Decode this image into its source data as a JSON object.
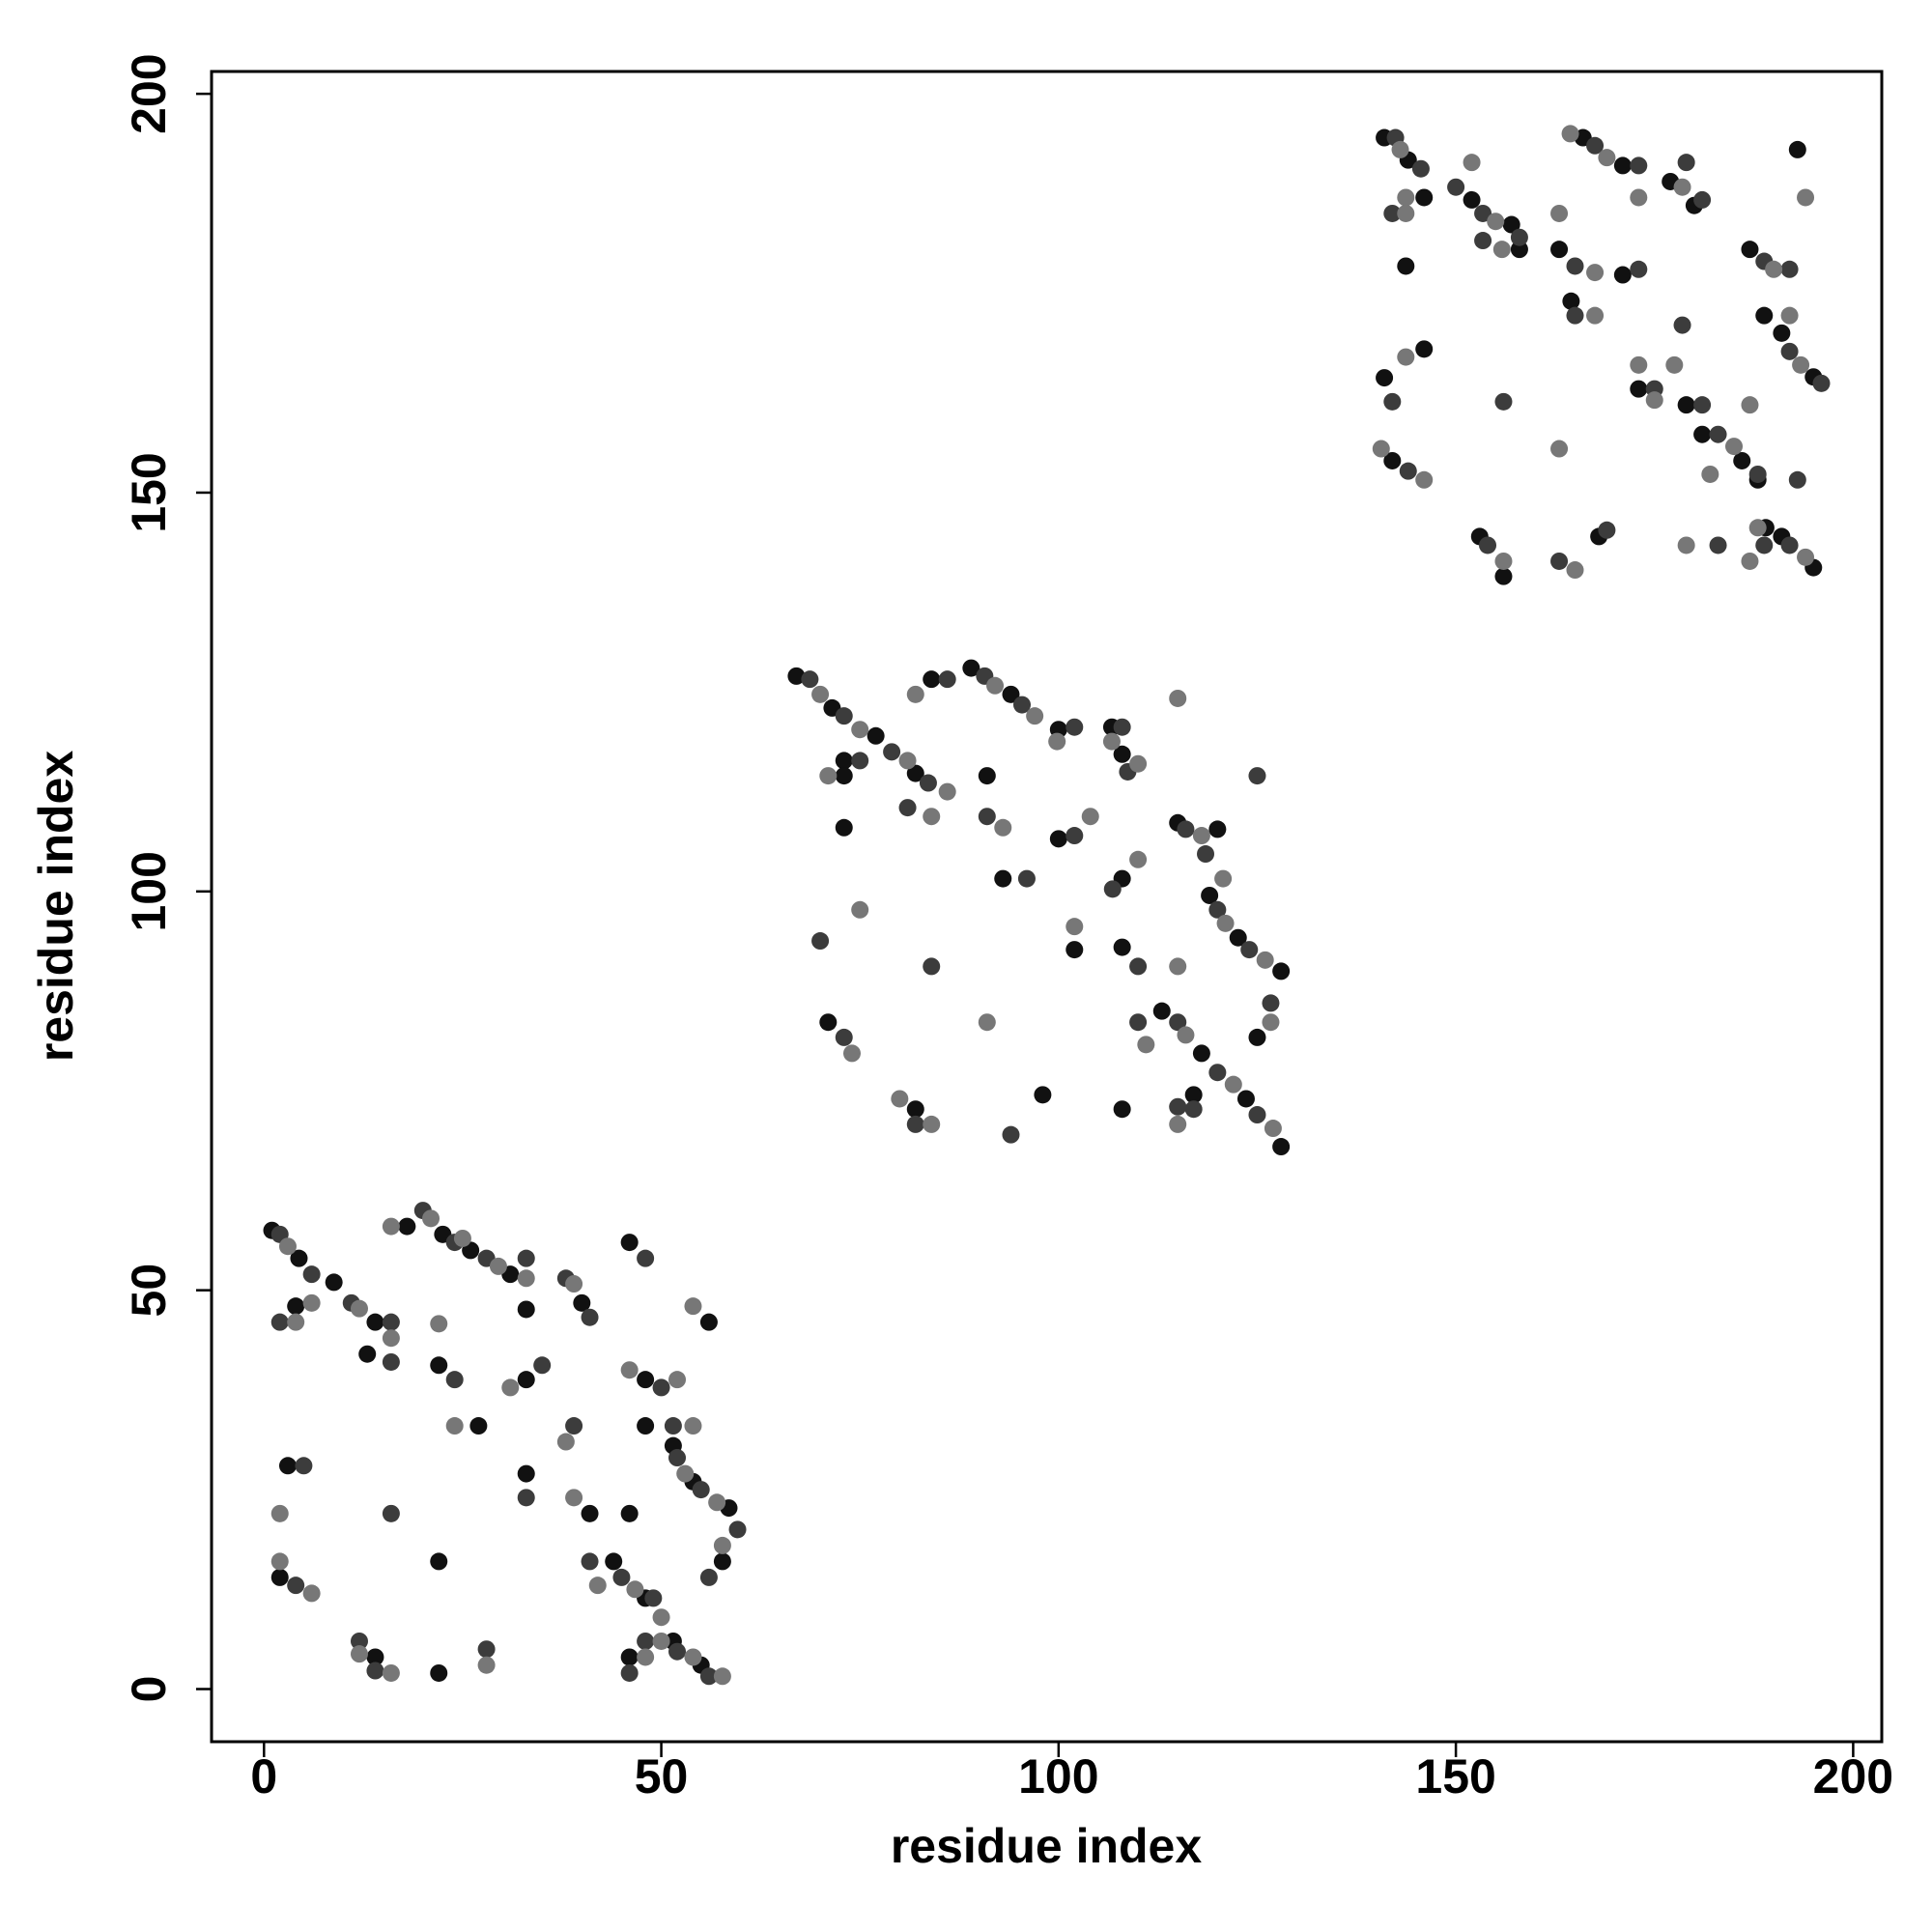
{
  "chart_data": {
    "type": "scatter",
    "xlabel": "residue index",
    "ylabel": "residue index",
    "xlim": [
      -6.6,
      203.6
    ],
    "ylim": [
      -6.6,
      202.8
    ],
    "xticks": [
      0,
      50,
      100,
      150,
      200
    ],
    "yticks": [
      0,
      50,
      100,
      150,
      200
    ],
    "grid": false,
    "series": [
      {
        "color": "#111111",
        "x": [
          1,
          4.4,
          4,
          8.8,
          14,
          13,
          18,
          22.5,
          26,
          31,
          33,
          40,
          22,
          33,
          27,
          33,
          41,
          3,
          2,
          22,
          14,
          22,
          46,
          48,
          48,
          51.5,
          54,
          58.5,
          57.7,
          56,
          44,
          48,
          46,
          51.5,
          55,
          46,
          67,
          71.5,
          77,
          82,
          73,
          73,
          73,
          84,
          89,
          94,
          100,
          91,
          100,
          93,
          102,
          98,
          82,
          71,
          106.7,
          108,
          108,
          108,
          115,
          120,
          119,
          122.6,
          128,
          125,
          113,
          118,
          123.6,
          128,
          108,
          117,
          141,
          144,
          146,
          143.7,
          152,
          157,
          158,
          163,
          164.5,
          171,
          166,
          171,
          177,
          180,
          193,
          179,
          173,
          187,
          188.8,
          191,
          195,
          181,
          186,
          188,
          189,
          191,
          195,
          142,
          141,
          146,
          153,
          156,
          168
        ],
        "y": [
          57.5,
          54,
          48,
          51,
          46,
          42,
          58,
          57,
          55,
          52,
          47.6,
          48.4,
          40.6,
          38.8,
          33,
          27,
          22,
          28,
          14,
          16,
          4,
          2,
          56,
          38.8,
          33,
          30.5,
          26,
          22.7,
          16,
          46,
          16,
          11.4,
          22,
          6,
          3,
          4,
          127,
          123,
          119.5,
          114.8,
          116.4,
          114.5,
          108,
          126.6,
          128,
          124.7,
          120.3,
          114.5,
          106.6,
          101.6,
          92.7,
          74.5,
          72.7,
          83.6,
          120.6,
          117.2,
          101.6,
          93,
          108.6,
          107.8,
          99.5,
          94.2,
          90,
          81.7,
          85,
          79.7,
          74,
          68,
          72.7,
          74.5,
          194.5,
          191.7,
          187,
          178.4,
          186.7,
          183.6,
          180.5,
          180.5,
          174,
          177.3,
          194.5,
          191,
          189,
          186,
          193,
          161,
          163,
          180.5,
          172.2,
          170,
          164.5,
          157.3,
          154,
          151.6,
          145.6,
          144.5,
          140.6,
          154,
          164.4,
          168,
          144.5,
          139.5,
          144.5
        ]
      },
      {
        "color": "#3c3c3c",
        "x": [
          2,
          6,
          2,
          11,
          16,
          16,
          20,
          24,
          28,
          33,
          38,
          41,
          24,
          35,
          39,
          33,
          16,
          5,
          4,
          12,
          14,
          28,
          48,
          50,
          51.5,
          52,
          55,
          59.6,
          56,
          41,
          45,
          49,
          48,
          52,
          56,
          46,
          68.7,
          73,
          79,
          83.6,
          75,
          81,
          70,
          86,
          90.7,
          95.4,
          102,
          91,
          102,
          96,
          84,
          94,
          82,
          73,
          108,
          108.7,
          106.8,
          110,
          116,
          118.5,
          120,
          124,
          126.7,
          125,
          115,
          120,
          125,
          110,
          115,
          117,
          142.4,
          145.6,
          142,
          150,
          153.4,
          153.4,
          158,
          165,
          165,
          173,
          167.5,
          173,
          179,
          181,
          178.5,
          181,
          175,
          188.8,
          192,
          192,
          196,
          183,
          188,
          193,
          188.8,
          192,
          183,
          144,
          142,
          156,
          154,
          163,
          169
        ],
        "y": [
          57,
          52,
          46,
          48.4,
          46,
          41,
          60,
          56,
          54,
          54,
          51.5,
          46.6,
          38.8,
          40.6,
          33,
          24,
          22,
          28,
          13,
          6,
          2.3,
          5,
          54,
          37.8,
          33,
          29,
          25,
          20,
          14,
          16,
          14,
          11.4,
          6,
          4.7,
          1.6,
          2,
          126.6,
          122,
          117.5,
          113.6,
          116.4,
          110.5,
          93.8,
          126.6,
          127,
          123.4,
          120.6,
          109.4,
          107,
          101.6,
          90.6,
          69.5,
          70.8,
          81.7,
          120.6,
          115,
          100.3,
          90.6,
          107.8,
          104.7,
          97.7,
          92.7,
          86,
          114.5,
          83.6,
          77.3,
          72,
          83.6,
          73,
          72.7,
          194.5,
          190.6,
          185,
          188.3,
          185,
          181.6,
          182,
          178.4,
          172.2,
          178,
          193.5,
          191,
          191.4,
          186.7,
          171,
          161,
          163,
          179,
          178,
          167.7,
          163.7,
          157.3,
          152.3,
          151.6,
          143.4,
          143.4,
          143.4,
          152.7,
          161.4,
          161.4,
          143.4,
          141.4,
          145.3
        ]
      },
      {
        "color": "#777777",
        "x": [
          3,
          6,
          4,
          12,
          16,
          16,
          21,
          25,
          29.5,
          33,
          39,
          22,
          31,
          24,
          38,
          39,
          2,
          2,
          6,
          12,
          16,
          28,
          46,
          52,
          54,
          53,
          57,
          57.7,
          54,
          42,
          46.7,
          50,
          50,
          54,
          57.7,
          48,
          70,
          75,
          81,
          86,
          71,
          84,
          75,
          82,
          92,
          97,
          99.8,
          93,
          104,
          102,
          91,
          80,
          84,
          74,
          106.7,
          110,
          110,
          115,
          118,
          115,
          121,
          126,
          126.7,
          120.7,
          116,
          122,
          127,
          111,
          115,
          143,
          143.7,
          143.7,
          152,
          155,
          155.8,
          163,
          167.5,
          167.5,
          164.4,
          169,
          173,
          178.5,
          194,
          177.5,
          173,
          175,
          190,
          192,
          193.4,
          187,
          185,
          182,
          188,
          187,
          194,
          140.6,
          146,
          143.7,
          163,
          156,
          165,
          179
        ],
        "y": [
          55.5,
          48.4,
          46,
          47.7,
          44,
          58,
          59,
          56.5,
          53,
          51.5,
          50.8,
          45.8,
          37.8,
          33,
          31,
          24,
          22,
          16,
          12,
          4.4,
          2,
          3,
          40,
          38.8,
          33,
          27,
          23.4,
          18,
          48,
          13,
          12.5,
          9,
          6,
          4,
          1.6,
          4,
          124.7,
          120.3,
          116.4,
          112.5,
          114.5,
          109.4,
          97.7,
          124.7,
          125.8,
          122,
          118.8,
          108,
          109.4,
          95.6,
          83.6,
          74,
          70.8,
          79.7,
          118.8,
          116,
          104,
          124.2,
          107,
          90.6,
          96,
          91.4,
          83.6,
          101.6,
          82,
          75.8,
          70.3,
          80.8,
          70.8,
          193,
          187,
          185,
          191.4,
          184,
          180.5,
          185,
          177.6,
          172.2,
          195,
          192,
          187,
          188.3,
          187,
          166,
          166,
          161.6,
          178,
          172.2,
          166,
          161,
          155.8,
          152.3,
          145.6,
          141.4,
          141.9,
          155.5,
          151.6,
          167,
          155.5,
          141.4,
          140.3,
          143.4
        ]
      }
    ]
  }
}
